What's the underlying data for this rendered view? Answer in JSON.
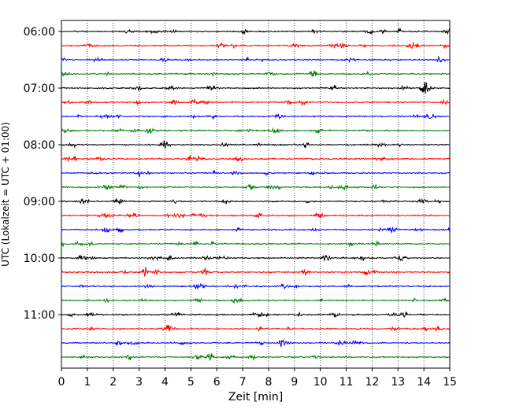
{
  "chart_data": {
    "type": "line",
    "title": "",
    "xlabel": "Zeit  [min]",
    "ylabel": "UTC (Lokalzeit = UTC + 01:00)",
    "xlim": [
      0,
      15
    ],
    "x_ticks": [
      "0",
      "1",
      "2",
      "3",
      "4",
      "5",
      "6",
      "7",
      "8",
      "9",
      "10",
      "11",
      "12",
      "13",
      "14",
      "15"
    ],
    "y_ticks": [
      "06:00",
      "07:00",
      "08:00",
      "09:00",
      "10:00",
      "11:00"
    ],
    "grid": "vertical dotted",
    "trace_colors": [
      "#000000",
      "#ff0000",
      "#0000ff",
      "#008000"
    ],
    "traces": [
      {
        "time": "06:00",
        "color": "#000000"
      },
      {
        "time": "06:15",
        "color": "#ff0000"
      },
      {
        "time": "06:30",
        "color": "#0000ff"
      },
      {
        "time": "06:45",
        "color": "#008000"
      },
      {
        "time": "07:00",
        "color": "#000000"
      },
      {
        "time": "07:15",
        "color": "#ff0000"
      },
      {
        "time": "07:30",
        "color": "#0000ff"
      },
      {
        "time": "07:45",
        "color": "#008000"
      },
      {
        "time": "08:00",
        "color": "#000000"
      },
      {
        "time": "08:15",
        "color": "#ff0000"
      },
      {
        "time": "08:30",
        "color": "#0000ff"
      },
      {
        "time": "08:45",
        "color": "#008000"
      },
      {
        "time": "09:00",
        "color": "#000000"
      },
      {
        "time": "09:15",
        "color": "#ff0000"
      },
      {
        "time": "09:30",
        "color": "#0000ff"
      },
      {
        "time": "09:45",
        "color": "#008000"
      },
      {
        "time": "10:00",
        "color": "#000000"
      },
      {
        "time": "10:15",
        "color": "#ff0000"
      },
      {
        "time": "10:30",
        "color": "#0000ff"
      },
      {
        "time": "10:45",
        "color": "#008000"
      },
      {
        "time": "11:00",
        "color": "#000000"
      },
      {
        "time": "11:15",
        "color": "#ff0000"
      },
      {
        "time": "11:30",
        "color": "#0000ff"
      },
      {
        "time": "11:45",
        "color": "#008000"
      }
    ]
  }
}
